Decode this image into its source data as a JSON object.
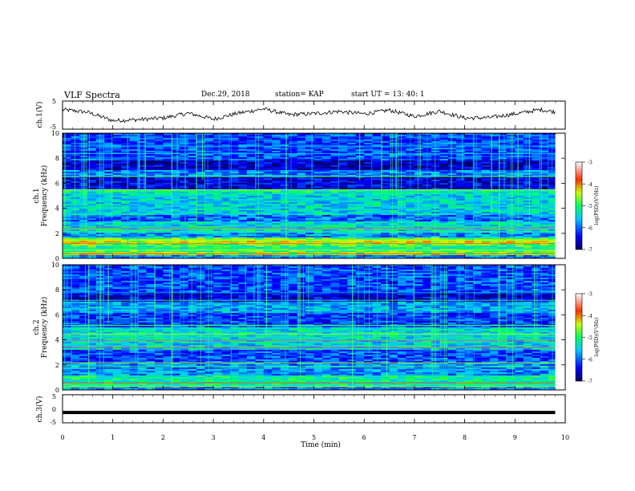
{
  "header": {
    "title": "VLF Spectra",
    "date": "Dec.29, 2018",
    "station": "station= KAP",
    "start": "start  UT  =   13: 40: 1"
  },
  "chart_data": [
    {
      "type": "line",
      "panel": "ch1-waveform",
      "ylabel": "ch.1(V)",
      "ylim": [
        -5,
        5
      ],
      "yticks": [
        "5",
        "-5"
      ],
      "x_unit": "min",
      "x": [
        0,
        0.5,
        1,
        1.5,
        2,
        2.5,
        3,
        3.5,
        4,
        4.5,
        5,
        5.5,
        6,
        6.5,
        7,
        7.5,
        8,
        8.5,
        9,
        9.5,
        9.8
      ],
      "values": [
        2.2,
        1.2,
        -2.2,
        -1.8,
        -1.2,
        0.8,
        -1.6,
        0.8,
        2.5,
        0.2,
        0.6,
        1.5,
        0.5,
        2.0,
        -0.5,
        1.6,
        -1.2,
        -1.0,
        0.5,
        2.2,
        1.3
      ]
    },
    {
      "type": "heatmap",
      "panel": "ch1-spectrogram",
      "ylabel_top": "ch.1",
      "ylabel": "Frequency (kHz)",
      "ylim": [
        0,
        10
      ],
      "yticks": [
        "0",
        "2",
        "4",
        "6",
        "8",
        "10"
      ],
      "xlim": [
        0,
        10
      ],
      "colorbar": {
        "label": "log(PSD)(V²/Hz)",
        "range": [
          -7,
          -3
        ],
        "ticks": [
          "-3",
          "-4",
          "-5",
          "-6",
          "-7"
        ]
      }
    },
    {
      "type": "heatmap",
      "panel": "ch2-spectrogram",
      "ylabel_top": "ch.2",
      "ylabel": "Frequency (kHz)",
      "ylim": [
        0,
        10
      ],
      "yticks": [
        "0",
        "2",
        "4",
        "6",
        "8",
        "10"
      ],
      "xlim": [
        0,
        10
      ],
      "colorbar": {
        "label": "log(PSD)(V²/Hz)",
        "range": [
          -7,
          -3
        ],
        "ticks": [
          "-3",
          "-4",
          "-5",
          "-6",
          "-7"
        ]
      }
    },
    {
      "type": "line",
      "panel": "ch3-waveform",
      "ylabel": "ch.3(V)",
      "ylim": [
        -5,
        5
      ],
      "yticks": [
        "5",
        "0",
        "-5"
      ],
      "x": [
        0,
        9.8
      ],
      "values": [
        -1.5,
        -1.5
      ]
    }
  ],
  "xaxis": {
    "label": "Time (min)",
    "ticks": [
      "0",
      "1",
      "2",
      "3",
      "4",
      "5",
      "6",
      "7",
      "8",
      "9",
      "10"
    ],
    "xlim": [
      0,
      10
    ]
  }
}
